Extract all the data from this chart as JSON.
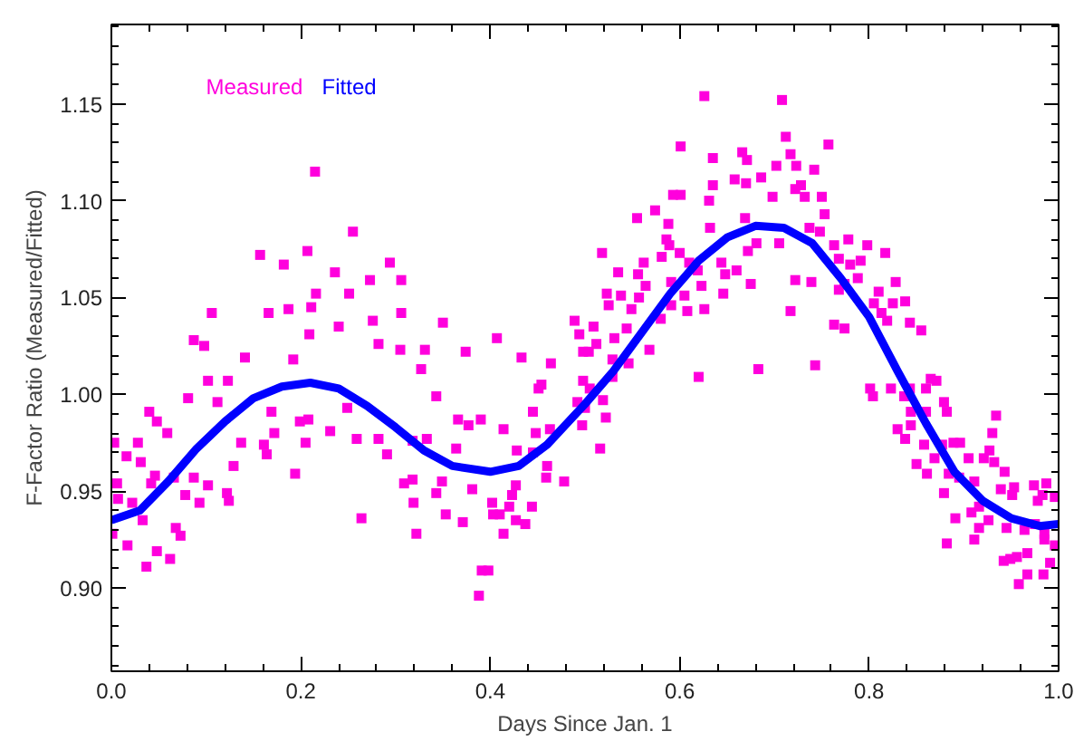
{
  "chart_data": {
    "type": "scatter",
    "xlabel": "Days Since Jan. 1",
    "ylabel": "F-Factor Ratio (Measured/Fitted)",
    "xlim": [
      0,
      1
    ],
    "ylim": [
      0.857,
      1.191
    ],
    "xticks": [
      {
        "value": 0,
        "label": "0.0"
      },
      {
        "value": 0.2,
        "label": "0.2"
      },
      {
        "value": 0.4,
        "label": "0.4"
      },
      {
        "value": 0.6,
        "label": "0.6"
      },
      {
        "value": 0.8,
        "label": "0.8"
      },
      {
        "value": 1,
        "label": "1.0"
      }
    ],
    "yticks": [
      {
        "value": 0.9,
        "label": "0.90"
      },
      {
        "value": 0.95,
        "label": "0.95"
      },
      {
        "value": 1.0,
        "label": "1.00"
      },
      {
        "value": 1.05,
        "label": "1.05"
      },
      {
        "value": 1.1,
        "label": "1.10"
      },
      {
        "value": 1.15,
        "label": "1.15"
      }
    ],
    "grid": false,
    "legend": "top left",
    "series": [
      {
        "name": "Measured",
        "marker": "square",
        "color": "#ff00dd",
        "x": [
          0.215,
          0.255,
          0.157,
          0.207,
          0.182,
          0.294,
          0.236,
          0.273,
          0.306,
          0.251,
          0.216,
          0.106,
          0.166,
          0.187,
          0.211,
          0.276,
          0.306,
          0.24,
          0.35,
          0.087,
          0.098,
          0.209,
          0.282,
          0.305,
          0.331,
          0.374,
          0.433,
          0.464,
          0.141,
          0.192,
          0.102,
          0.123,
          0.327,
          0.407,
          0.454,
          0.081,
          0.112,
          0.04,
          0.048,
          0.059,
          0.003,
          0.028,
          0.016,
          0.031,
          0.046,
          0.006,
          0.007,
          0.022,
          0.042,
          0.066,
          0.087,
          0.078,
          0.093,
          0.068,
          0.073,
          0.033,
          0.017,
          0.048,
          0.062,
          0.037,
          0.001,
          0.122,
          0.124,
          0.129,
          0.102,
          0.164,
          0.194,
          0.161,
          0.205,
          0.172,
          0.137,
          0.169,
          0.231,
          0.199,
          0.208,
          0.249,
          0.259,
          0.264,
          0.282,
          0.291,
          0.318,
          0.309,
          0.319,
          0.318,
          0.322,
          0.333,
          0.343,
          0.349,
          0.343,
          0.353,
          0.364,
          0.366,
          0.371,
          0.377,
          0.381,
          0.391,
          0.398,
          0.388,
          0.39,
          0.402,
          0.403,
          0.41,
          0.414,
          0.414,
          0.42,
          0.423,
          0.427,
          0.427,
          0.428,
          0.437,
          0.444,
          0.445,
          0.445,
          0.451,
          0.448,
          0.46,
          0.463,
          0.459,
          0.478,
          0.489,
          0.494,
          0.497,
          0.498,
          0.498,
          0.492,
          0.626,
          0.708,
          0.712,
          0.601,
          0.757,
          0.666,
          0.635,
          0.671,
          0.717,
          0.702,
          0.723,
          0.742,
          0.658,
          0.686,
          0.635,
          0.67,
          0.698,
          0.593,
          0.601,
          0.631,
          0.722,
          0.728,
          0.732,
          0.75,
          0.574,
          0.555,
          0.669,
          0.753,
          0.588,
          0.632,
          0.737,
          0.748,
          0.586,
          0.589,
          0.681,
          0.705,
          0.763,
          0.778,
          0.798,
          0.817,
          0.518,
          0.562,
          0.581,
          0.6,
          0.644,
          0.61,
          0.672,
          0.768,
          0.78,
          0.791,
          0.535,
          0.556,
          0.619,
          0.648,
          0.66,
          0.788,
          0.564,
          0.591,
          0.623,
          0.739,
          0.722,
          0.523,
          0.538,
          0.557,
          0.605,
          0.646,
          0.675,
          0.768,
          0.774,
          0.81,
          0.828,
          0.525,
          0.549,
          0.591,
          0.608,
          0.626,
          0.717,
          0.805,
          0.825,
          0.838,
          0.58,
          0.813,
          0.819,
          0.843,
          0.763,
          0.774,
          0.855,
          0.509,
          0.512,
          0.531,
          0.544,
          0.504,
          0.568,
          0.529,
          0.546,
          0.743,
          0.683,
          0.62,
          0.529,
          0.801,
          0.804,
          0.823,
          0.837,
          0.843,
          0.865,
          0.871,
          0.86,
          0.505,
          0.519,
          0.5,
          0.522,
          0.516,
          0.844,
          0.86,
          0.879,
          0.882,
          0.83,
          0.844,
          0.838,
          0.934,
          0.93,
          0.858,
          0.85,
          0.861,
          0.877,
          0.869,
          0.896,
          0.889,
          0.905,
          0.921,
          0.927,
          0.932,
          0.884,
          0.879,
          0.895,
          0.911,
          0.939,
          0.951,
          0.953,
          0.943,
          0.974,
          0.987,
          0.983,
          0.996,
          0.978,
          0.891,
          0.908,
          0.916,
          0.926,
          0.916,
          0.911,
          0.882,
          0.945,
          0.964,
          0.975,
          0.985,
          0.985,
          0.996,
          0.967,
          0.956,
          0.942,
          0.949,
          0.991,
          0.967,
          0.984,
          0.958
        ],
        "values": [
          1.115,
          1.084,
          1.072,
          1.074,
          1.067,
          1.068,
          1.063,
          1.059,
          1.059,
          1.052,
          1.052,
          1.042,
          1.042,
          1.044,
          1.045,
          1.038,
          1.042,
          1.035,
          1.037,
          1.028,
          1.025,
          1.031,
          1.026,
          1.023,
          1.023,
          1.022,
          1.019,
          1.016,
          1.019,
          1.018,
          1.007,
          1.007,
          1.013,
          1.029,
          1.005,
          0.998,
          0.996,
          0.991,
          0.986,
          0.98,
          0.975,
          0.975,
          0.968,
          0.965,
          0.958,
          0.954,
          0.946,
          0.944,
          0.954,
          0.957,
          0.957,
          0.948,
          0.944,
          0.931,
          0.927,
          0.935,
          0.922,
          0.919,
          0.915,
          0.911,
          0.928,
          0.949,
          0.945,
          0.963,
          0.953,
          0.969,
          0.959,
          0.974,
          0.975,
          0.98,
          0.975,
          0.991,
          0.981,
          0.986,
          0.987,
          0.993,
          0.977,
          0.936,
          0.977,
          0.969,
          0.976,
          0.954,
          0.944,
          0.956,
          0.928,
          0.977,
          0.999,
          0.955,
          0.949,
          0.938,
          0.972,
          0.987,
          0.934,
          0.984,
          0.951,
          0.909,
          0.909,
          0.896,
          0.987,
          0.944,
          0.938,
          0.938,
          0.928,
          0.982,
          0.942,
          0.948,
          0.953,
          0.935,
          0.971,
          0.933,
          0.942,
          0.97,
          0.991,
          1.003,
          0.98,
          0.963,
          0.982,
          0.957,
          0.955,
          1.038,
          1.031,
          0.984,
          1.007,
          1.022,
          0.996,
          1.154,
          1.152,
          1.133,
          1.128,
          1.129,
          1.125,
          1.122,
          1.121,
          1.124,
          1.118,
          1.118,
          1.116,
          1.111,
          1.112,
          1.108,
          1.109,
          1.102,
          1.103,
          1.103,
          1.1,
          1.106,
          1.108,
          1.102,
          1.102,
          1.095,
          1.091,
          1.091,
          1.093,
          1.088,
          1.086,
          1.086,
          1.084,
          1.08,
          1.077,
          1.078,
          1.078,
          1.077,
          1.08,
          1.077,
          1.073,
          1.073,
          1.068,
          1.071,
          1.073,
          1.068,
          1.068,
          1.074,
          1.07,
          1.067,
          1.069,
          1.063,
          1.062,
          1.064,
          1.062,
          1.064,
          1.06,
          1.056,
          1.058,
          1.056,
          1.058,
          1.059,
          1.052,
          1.051,
          1.05,
          1.051,
          1.052,
          1.057,
          1.054,
          1.057,
          1.053,
          1.058,
          1.046,
          1.044,
          1.046,
          1.043,
          1.044,
          1.043,
          1.047,
          1.047,
          1.048,
          1.039,
          1.042,
          1.038,
          1.037,
          1.036,
          1.034,
          1.033,
          1.035,
          1.026,
          1.029,
          1.034,
          1.022,
          1.023,
          1.018,
          1.016,
          1.015,
          1.013,
          1.009,
          1.009,
          1.003,
          0.999,
          1.003,
          0.999,
          1.003,
          1.008,
          1.007,
          1.003,
          1.003,
          0.997,
          0.993,
          0.988,
          0.972,
          0.991,
          0.991,
          0.996,
          0.991,
          0.982,
          0.984,
          0.977,
          0.989,
          0.98,
          0.974,
          0.964,
          0.959,
          0.974,
          0.967,
          0.975,
          0.975,
          0.967,
          0.967,
          0.971,
          0.965,
          0.959,
          0.949,
          0.957,
          0.955,
          0.951,
          0.948,
          0.952,
          0.96,
          0.953,
          0.954,
          0.948,
          0.947,
          0.945,
          0.936,
          0.939,
          0.942,
          0.935,
          0.931,
          0.925,
          0.923,
          0.931,
          0.93,
          0.933,
          0.928,
          0.925,
          0.922,
          0.918,
          0.916,
          0.914,
          0.915,
          0.913,
          0.907,
          0.907,
          0.902
        ]
      },
      {
        "name": "Fitted",
        "type": "line",
        "marker": "none",
        "color": "#0000ff",
        "x": [
          0,
          0.03,
          0.06,
          0.09,
          0.12,
          0.15,
          0.18,
          0.21,
          0.24,
          0.27,
          0.3,
          0.33,
          0.36,
          0.4,
          0.43,
          0.46,
          0.5,
          0.53,
          0.56,
          0.59,
          0.62,
          0.65,
          0.68,
          0.71,
          0.74,
          0.77,
          0.8,
          0.83,
          0.86,
          0.89,
          0.92,
          0.95,
          0.98,
          1.0
        ],
        "values": [
          0.935,
          0.94,
          0.955,
          0.972,
          0.986,
          0.998,
          1.004,
          1.006,
          1.003,
          0.994,
          0.983,
          0.971,
          0.963,
          0.96,
          0.963,
          0.974,
          0.995,
          1.012,
          1.032,
          1.052,
          1.069,
          1.081,
          1.087,
          1.086,
          1.078,
          1.06,
          1.04,
          1.012,
          0.985,
          0.96,
          0.945,
          0.936,
          0.932,
          0.933
        ]
      }
    ]
  }
}
